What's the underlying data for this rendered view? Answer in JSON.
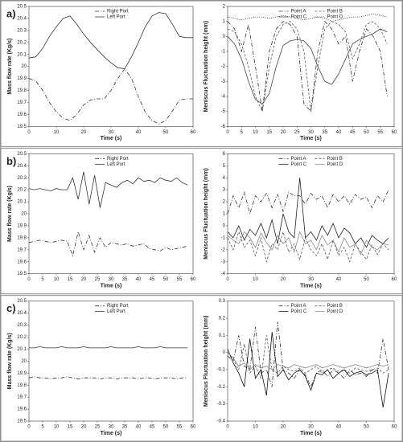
{
  "chart_data": [
    {
      "type": "line",
      "panel_label": "a)",
      "xlabel": "Time (s)",
      "ylabel": "Mass flow rate (Kg/s)",
      "x": [
        0,
        2.5,
        5,
        7.5,
        10,
        12.5,
        15,
        17.5,
        20,
        22.5,
        25,
        27.5,
        30,
        32.5,
        35,
        37.5,
        40,
        42.5,
        45,
        47.5,
        50,
        52.5,
        55,
        57.5,
        60
      ],
      "series": [
        {
          "name": "Right Port",
          "color": "#333333",
          "dash": "5,2,1,2",
          "values": [
            19.9,
            19.88,
            19.8,
            19.7,
            19.62,
            19.57,
            19.55,
            19.6,
            19.68,
            19.72,
            19.73,
            19.73,
            19.8,
            19.9,
            19.98,
            19.9,
            19.75,
            19.62,
            19.55,
            19.52,
            19.55,
            19.63,
            19.72,
            19.73,
            19.73
          ]
        },
        {
          "name": "Left Port",
          "color": "#333333",
          "dash": "none",
          "values": [
            20.07,
            20.08,
            20.15,
            20.25,
            20.33,
            20.4,
            20.42,
            20.35,
            20.27,
            20.2,
            20.14,
            20.08,
            20.03,
            19.99,
            19.98,
            20.08,
            20.2,
            20.33,
            20.42,
            20.45,
            20.44,
            20.35,
            20.25,
            20.24,
            20.24
          ]
        }
      ],
      "xlim": [
        0,
        60
      ],
      "ylim": [
        19.5,
        20.5
      ],
      "xticks": [
        0,
        10,
        20,
        30,
        40,
        50,
        60
      ],
      "yticks": [
        19.5,
        19.6,
        19.7,
        19.8,
        19.9,
        20,
        20.1,
        20.2,
        20.3,
        20.4,
        20.5
      ]
    },
    {
      "type": "line",
      "xlabel": "Time (s)",
      "ylabel": "Meniscus Fluctuation height (mm)",
      "x": [
        0,
        2.5,
        5,
        7.5,
        10,
        12.5,
        15,
        17.5,
        20,
        22.5,
        25,
        27.5,
        30,
        32.5,
        35,
        37.5,
        40,
        42.5,
        45,
        47.5,
        50,
        52.5,
        55,
        57.5
      ],
      "series": [
        {
          "name": "Point A",
          "color": "#333333",
          "dash": "5,2,1,2",
          "values": [
            1,
            0.5,
            -1,
            0.8,
            -2,
            -5,
            -1,
            0.5,
            1,
            0.8,
            0,
            -4.5,
            -5,
            -1,
            1,
            0.5,
            -0.5,
            0,
            -3,
            -1,
            0.5,
            0,
            -1,
            -4
          ]
        },
        {
          "name": "Point B",
          "color": "#555555",
          "dash": "3,2",
          "values": [
            0.5,
            0.3,
            -0.5,
            -2,
            -4,
            -5,
            -2,
            0,
            0.8,
            1,
            0.5,
            -1,
            -5,
            -2,
            0.5,
            1,
            0.8,
            0.3,
            -1.5,
            -0.5,
            0.8,
            1,
            0.5,
            -0.5
          ]
        },
        {
          "name": "Point C",
          "color": "#444444",
          "dash": "none",
          "values": [
            0,
            -0.5,
            -1.5,
            -3,
            -4.2,
            -4.5,
            -3.8,
            -2,
            -0.6,
            -0.3,
            -0.2,
            -0.3,
            -0.8,
            -2,
            -3,
            -3.2,
            -2.5,
            -1.5,
            -0.5,
            -0.2,
            0,
            0.2,
            0.5,
            0.3
          ]
        },
        {
          "name": "Point D",
          "color": "#222222",
          "dash": "1,1.5",
          "values": [
            1.3,
            1.2,
            1.1,
            1.2,
            1.3,
            1.3,
            1.2,
            1.3,
            1.4,
            1.3,
            1.2,
            1.1,
            1.2,
            1.3,
            1.2,
            1.0,
            1.1,
            1.2,
            1.3,
            1.3,
            1.4,
            1.5,
            1.4,
            1.3
          ]
        }
      ],
      "xlim": [
        0,
        60
      ],
      "ylim": [
        -6,
        2
      ],
      "xticks": [
        0,
        5,
        10,
        15,
        20,
        25,
        30,
        35,
        40,
        45,
        50,
        55,
        60
      ],
      "yticks": [
        -6,
        -5,
        -4,
        -3,
        -2,
        -1,
        0,
        1,
        2
      ]
    },
    {
      "type": "line",
      "panel_label": "b)",
      "xlabel": "Time (s)",
      "ylabel": "Mass flow rate (Kg/s)",
      "x": [
        0,
        2,
        4,
        6,
        8,
        10,
        12,
        14,
        16,
        18,
        20,
        22,
        24,
        26,
        28,
        30,
        32,
        34,
        36,
        38,
        40,
        42,
        44,
        46,
        48,
        50,
        52,
        54,
        56,
        58
      ],
      "series": [
        {
          "name": "Right Port",
          "color": "#333333",
          "dash": "5,2,1,2",
          "values": [
            19.76,
            19.77,
            19.78,
            19.77,
            19.76,
            19.77,
            19.78,
            19.77,
            19.65,
            19.85,
            19.7,
            19.82,
            19.68,
            19.8,
            19.72,
            19.76,
            19.75,
            19.74,
            19.75,
            19.73,
            19.74,
            19.75,
            19.71,
            19.7,
            19.69,
            19.72,
            19.7,
            19.71,
            19.72,
            19.73
          ]
        },
        {
          "name": "Left Port",
          "color": "#333333",
          "dash": "none",
          "values": [
            20.21,
            20.2,
            20.21,
            20.2,
            20.19,
            20.21,
            20.2,
            20.2,
            20.3,
            20.12,
            20.35,
            20.08,
            20.32,
            20.05,
            20.26,
            20.24,
            20.22,
            20.26,
            20.28,
            20.25,
            20.3,
            20.27,
            20.28,
            20.26,
            20.3,
            20.28,
            20.27,
            20.3,
            20.26,
            20.24
          ]
        }
      ],
      "xlim": [
        0,
        60
      ],
      "ylim": [
        19.5,
        20.5
      ],
      "xticks": [
        0,
        5,
        10,
        15,
        20,
        25,
        30,
        35,
        40,
        45,
        50,
        55,
        60
      ],
      "yticks": [
        19.5,
        19.6,
        19.7,
        19.8,
        19.9,
        20,
        20.1,
        20.2,
        20.3,
        20.4,
        20.5
      ]
    },
    {
      "type": "line",
      "xlabel": "Time (s)",
      "ylabel": "Meniscus Fluctuation height (mm)",
      "x": [
        0,
        2,
        4,
        6,
        8,
        10,
        12,
        14,
        16,
        18,
        20,
        22,
        24,
        26,
        28,
        30,
        32,
        34,
        36,
        38,
        40,
        42,
        44,
        46,
        48,
        50,
        52,
        54,
        56,
        58
      ],
      "series": [
        {
          "name": "Point A",
          "color": "#333333",
          "dash": "5,2,1,2",
          "values": [
            1,
            2.5,
            1.5,
            2.8,
            1,
            2.5,
            2,
            2.7,
            1.5,
            2.6,
            1.2,
            2.8,
            2.5,
            2.5,
            1.8,
            2.7,
            2.2,
            2.5,
            1.5,
            2.6,
            2,
            2.5,
            1.8,
            2.6,
            2.2,
            2.4,
            1.5,
            2.5,
            2,
            3
          ]
        },
        {
          "name": "Point B",
          "color": "#555555",
          "dash": "3,2",
          "values": [
            -1,
            -2,
            -0.5,
            -1.8,
            -1.2,
            -2.5,
            -1,
            -3,
            -1.5,
            -2,
            -0.5,
            -2.2,
            -1.5,
            -2.8,
            -1,
            -2,
            -2.5,
            -1.5,
            -2.8,
            -1.2,
            -2.5,
            -1.8,
            -3,
            -1.5,
            -2.2,
            -2.8,
            -1.6,
            -2.4,
            -1.5,
            -2
          ]
        },
        {
          "name": "Point C",
          "color": "#222222",
          "dash": "none",
          "values": [
            -0.5,
            -1,
            0,
            -1.2,
            -0.3,
            -0.8,
            0.2,
            -1,
            0.5,
            -1.5,
            1,
            -0.5,
            -1,
            4,
            -1,
            -0.5,
            -1.2,
            0,
            -0.8,
            0.2,
            -1,
            -0.2,
            -0.6,
            -1.5,
            -1,
            -1.8,
            -0.8,
            -1.2,
            -1.5,
            -1
          ]
        },
        {
          "name": "Point D",
          "color": "#888888",
          "dash": "none",
          "values": [
            -0.8,
            -1.2,
            -1.5,
            -0.5,
            -1,
            -1.8,
            -0.6,
            -1.4,
            -2,
            -0.8,
            -1.5,
            -1,
            -2.2,
            -0.5,
            -1.5,
            -1.2,
            -2,
            -0.8,
            -1.6,
            -1.2,
            -2.2,
            -1,
            -1.8,
            -1.5,
            -2.4,
            -1.2,
            -1.8,
            -2,
            -1.5,
            -1.6
          ]
        }
      ],
      "xlim": [
        0,
        60
      ],
      "ylim": [
        -4,
        6
      ],
      "xticks": [
        0,
        10,
        20,
        30,
        40,
        50,
        60
      ],
      "yticks": [
        -4,
        -3,
        -2,
        -1,
        0,
        1,
        2,
        3,
        4,
        5,
        6
      ]
    },
    {
      "type": "line",
      "panel_label": "c)",
      "xlabel": "Time (s)",
      "ylabel": "Mass flow rate (Kg/s)",
      "x": [
        0,
        2,
        4,
        6,
        8,
        10,
        12,
        14,
        16,
        18,
        20,
        22,
        24,
        26,
        28,
        30,
        32,
        34,
        36,
        38,
        40,
        42,
        44,
        46,
        48,
        50,
        52,
        54,
        56,
        58
      ],
      "series": [
        {
          "name": "Right Port",
          "color": "#333333",
          "dash": "5,2,1,2",
          "values": [
            19.86,
            19.87,
            19.86,
            19.86,
            19.85,
            19.86,
            19.86,
            19.87,
            19.86,
            19.85,
            19.86,
            19.86,
            19.86,
            19.85,
            19.86,
            19.86,
            19.85,
            19.86,
            19.86,
            19.86,
            19.85,
            19.86,
            19.86,
            19.85,
            19.86,
            19.86,
            19.86,
            19.85,
            19.86,
            19.86
          ]
        },
        {
          "name": "Left Port",
          "color": "#333333",
          "dash": "none",
          "values": [
            20.11,
            20.11,
            20.12,
            20.11,
            20.11,
            20.11,
            20.12,
            20.11,
            20.11,
            20.11,
            20.12,
            20.11,
            20.11,
            20.11,
            20.11,
            20.12,
            20.11,
            20.11,
            20.11,
            20.11,
            20.12,
            20.11,
            20.11,
            20.11,
            20.12,
            20.11,
            20.11,
            20.11,
            20.11,
            20.11
          ]
        }
      ],
      "xlim": [
        0,
        60
      ],
      "ylim": [
        19.5,
        20.5
      ],
      "xticks": [
        0,
        5,
        10,
        15,
        20,
        25,
        30,
        35,
        40,
        45,
        50,
        55,
        60
      ],
      "yticks": [
        19.5,
        19.6,
        19.7,
        19.8,
        19.9,
        20,
        20.1,
        20.2,
        20.3,
        20.4,
        20.5
      ]
    },
    {
      "type": "line",
      "xlabel": "Time (s)",
      "ylabel": "Meniscus Fluctuation height (mm)",
      "x": [
        0,
        2,
        4,
        6,
        8,
        10,
        12,
        14,
        16,
        18,
        20,
        22,
        24,
        26,
        28,
        30,
        32,
        34,
        36,
        38,
        40,
        42,
        44,
        46,
        48,
        50,
        52,
        54,
        56,
        58
      ],
      "series": [
        {
          "name": "Point A",
          "color": "#333333",
          "dash": "5,2,1,2",
          "values": [
            -0.02,
            -0.05,
            0.1,
            -0.08,
            -0.1,
            0.15,
            -0.12,
            -0.1,
            -0.2,
            0.18,
            -0.1,
            -0.12,
            -0.15,
            -0.1,
            -0.13,
            -0.2,
            -0.12,
            -0.1,
            -0.14,
            -0.1,
            -0.12,
            -0.15,
            -0.1,
            -0.13,
            -0.12,
            -0.14,
            -0.1,
            -0.12,
            0.08,
            -0.1
          ]
        },
        {
          "name": "Point B",
          "color": "#555555",
          "dash": "3,2",
          "values": [
            0,
            -0.04,
            -0.1,
            0.05,
            -0.12,
            -0.08,
            -0.15,
            0.1,
            -0.1,
            -0.12,
            -0.08,
            -0.1,
            -0.11,
            -0.09,
            -0.12,
            -0.1,
            -0.08,
            -0.12,
            -0.1,
            -0.09,
            -0.11,
            -0.1,
            -0.12,
            -0.09,
            -0.1,
            -0.11,
            -0.1,
            -0.09,
            -0.12,
            -0.1
          ]
        },
        {
          "name": "Point C",
          "color": "#111111",
          "dash": "none",
          "values": [
            0.02,
            -0.06,
            -0.12,
            -0.2,
            0.08,
            -0.15,
            -0.1,
            -0.25,
            0.12,
            -0.14,
            -0.1,
            -0.16,
            -0.12,
            -0.1,
            -0.14,
            -0.22,
            -0.12,
            -0.13,
            -0.1,
            -0.15,
            -0.12,
            -0.1,
            -0.14,
            -0.12,
            -0.11,
            -0.13,
            -0.12,
            -0.1,
            -0.32,
            -0.12
          ]
        },
        {
          "name": "Point D",
          "color": "#888888",
          "dash": "none",
          "values": [
            0,
            -0.03,
            -0.08,
            -0.06,
            -0.1,
            -0.07,
            -0.09,
            -0.08,
            -0.1,
            -0.07,
            -0.08,
            -0.09,
            -0.07,
            -0.08,
            -0.09,
            -0.08,
            -0.07,
            -0.09,
            -0.08,
            -0.07,
            -0.08,
            -0.09,
            -0.08,
            -0.07,
            -0.08,
            -0.09,
            -0.08,
            -0.07,
            -0.08,
            -0.07
          ]
        }
      ],
      "xlim": [
        0,
        60
      ],
      "ylim": [
        -0.4,
        0.3
      ],
      "xticks": [
        0,
        10,
        20,
        30,
        40,
        50,
        60
      ],
      "yticks": [
        -0.4,
        -0.3,
        -0.2,
        -0.1,
        0,
        0.1,
        0.2,
        0.3
      ]
    }
  ]
}
